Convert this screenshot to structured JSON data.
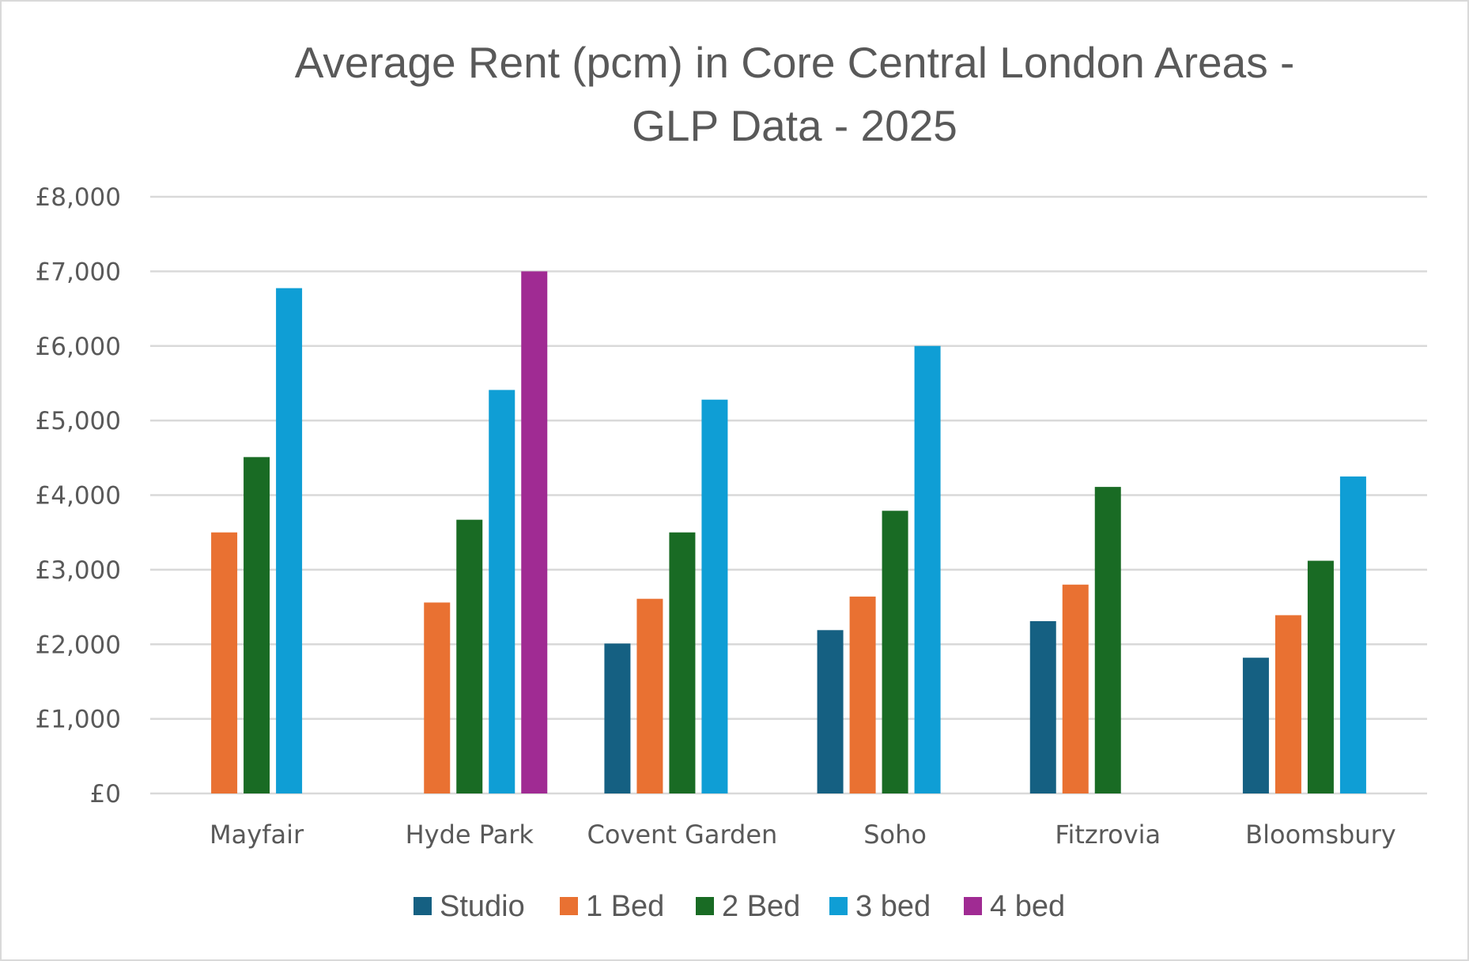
{
  "chart_data": {
    "type": "bar",
    "title_lines": [
      "Average Rent (pcm) in Core Central London Areas -",
      "GLP Data - 2025"
    ],
    "xlabel": "",
    "ylabel": "",
    "ylim": [
      0,
      8000
    ],
    "y_ticks": [
      0,
      1000,
      2000,
      3000,
      4000,
      5000,
      6000,
      7000,
      8000
    ],
    "y_tick_labels": [
      "£0",
      "£1,000",
      "£2,000",
      "£3,000",
      "£4,000",
      "£5,000",
      "£6,000",
      "£7,000",
      "£8,000"
    ],
    "grid": true,
    "legend_position": "bottom",
    "categories": [
      "Mayfair",
      "Hyde Park",
      "Covent Garden",
      "Soho",
      "Fitzrovia",
      "Bloomsbury"
    ],
    "series": [
      {
        "name": "Studio",
        "color": "#156082",
        "values": [
          null,
          null,
          2010,
          2190,
          2310,
          1820
        ]
      },
      {
        "name": "1 Bed",
        "color": "#E97132",
        "values": [
          3500,
          2560,
          2610,
          2640,
          2800,
          2390
        ]
      },
      {
        "name": "2 Bed",
        "color": "#196B24",
        "values": [
          4510,
          3670,
          3500,
          3790,
          4110,
          3120
        ]
      },
      {
        "name": "3 bed",
        "color": "#0F9ED5",
        "values": [
          6775,
          5410,
          5280,
          6000,
          null,
          4250
        ]
      },
      {
        "name": "4 bed",
        "color": "#A02B93",
        "values": [
          null,
          7000,
          null,
          null,
          null,
          null
        ]
      }
    ]
  },
  "style": {
    "grid_color": "#d9d9d9",
    "text_color": "#595959"
  }
}
